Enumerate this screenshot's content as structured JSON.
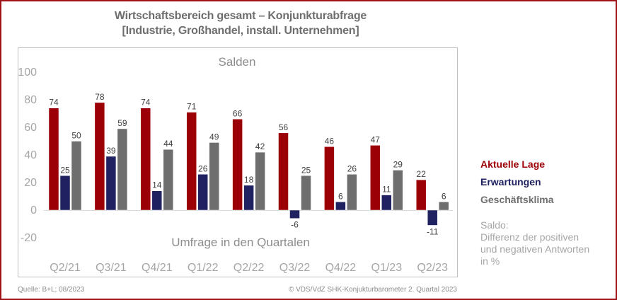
{
  "title": {
    "line1": "Wirtschaftsbereich gesamt – Konjunkturabfrage",
    "line2": "[Industrie, Großhandel, install. Unternehmen]"
  },
  "chart_data": {
    "type": "bar",
    "title": "Salden",
    "xlabel": "Umfrage in den Quartalen",
    "ylabel": "",
    "ylim": [
      -20,
      100
    ],
    "yticks": [
      100,
      80,
      60,
      40,
      20,
      0,
      -20
    ],
    "grid": false,
    "legend_position": "right",
    "categories": [
      "Q2/21",
      "Q3/21",
      "Q4/21",
      "Q1/22",
      "Q2/22",
      "Q3/22",
      "Q4/22",
      "Q1/23",
      "Q2/23"
    ],
    "series": [
      {
        "name": "Aktuelle Lage",
        "color": "#9b0006",
        "values": [
          74,
          78,
          74,
          71,
          66,
          56,
          46,
          47,
          22
        ]
      },
      {
        "name": "Erwartungen",
        "color": "#1f2160",
        "values": [
          25,
          39,
          14,
          26,
          18,
          -6,
          6,
          11,
          -11
        ]
      },
      {
        "name": "Geschäftsklima",
        "color": "#6e6e6e",
        "values": [
          50,
          59,
          44,
          49,
          42,
          25,
          26,
          29,
          6
        ]
      }
    ]
  },
  "legend": {
    "items": [
      {
        "label": "Aktuelle Lage",
        "color": "#9b0006"
      },
      {
        "label": "Erwartungen",
        "color": "#1f2160"
      },
      {
        "label": "Geschäftsklima",
        "color": "#6e6e6e"
      }
    ]
  },
  "note": {
    "line1": "Saldo:",
    "line2": "Differenz der positiven",
    "line3": "und negativen Antworten",
    "line4": "in %"
  },
  "footer": {
    "source": "Quelle: B+L; 08/2023",
    "copyright": "© VDS/VdZ SHK-Konjukturbarometer 2. Quartal 2023"
  },
  "colors": {
    "border": "#a0121a",
    "axis_text": "#a6a6a6"
  }
}
